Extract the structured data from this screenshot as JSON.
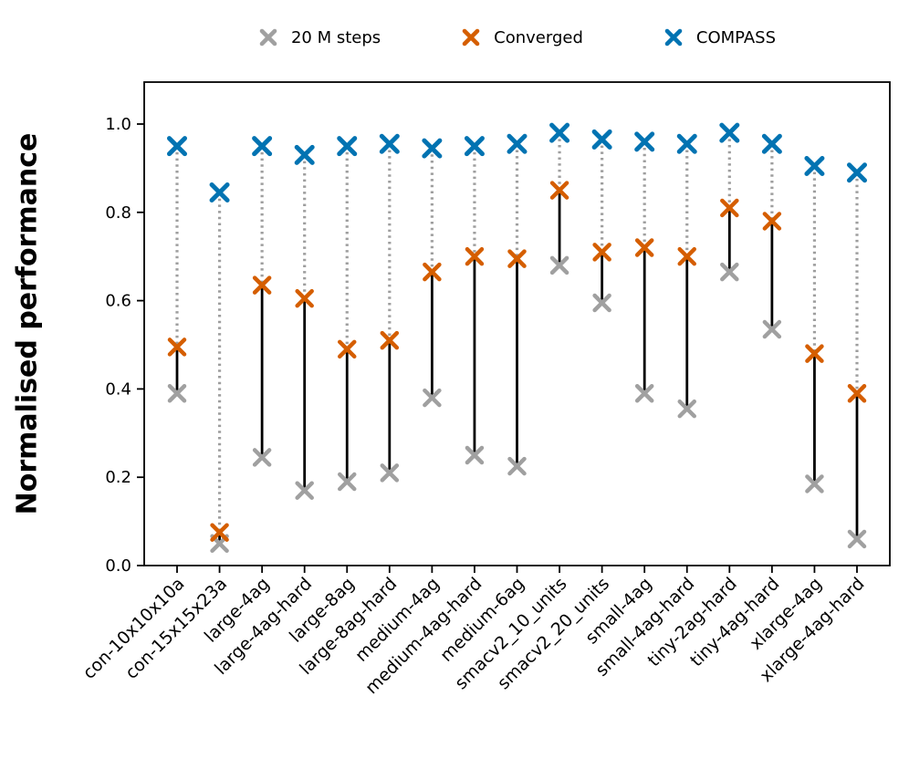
{
  "ylabel": "Normalised performance",
  "legend": {
    "items": [
      {
        "label": "20 M steps",
        "color": "#a0a0a0"
      },
      {
        "label": "Converged",
        "color": "#d55e00"
      },
      {
        "label": "COMPASS",
        "color": "#0173b2"
      }
    ]
  },
  "colors": {
    "gray_series": "#a0a0a0",
    "orange_series": "#d55e00",
    "blue_series": "#0173b2",
    "solid_connector": "#000000",
    "dotted_connector": "#9e9e9e",
    "axis": "#000000"
  },
  "chart_data": {
    "type": "scatter",
    "title": "",
    "xlabel": "",
    "ylabel": "Normalised performance",
    "marker": "x",
    "ylim": [
      0,
      1.095
    ],
    "grid": false,
    "legend_position": "top-center",
    "ytick_labels": [
      "0.0",
      "0.2",
      "0.4",
      "0.6",
      "0.8",
      "1.0"
    ],
    "yticks": [
      0.0,
      0.2,
      0.4,
      0.6,
      0.8,
      1.0
    ],
    "categories": [
      "con-10x10x10a",
      "con-15x15x23a",
      "large-4ag",
      "large-4ag-hard",
      "large-8ag",
      "large-8ag-hard",
      "medium-4ag",
      "medium-4ag-hard",
      "medium-6ag",
      "smacv2_10_units",
      "smacv2_20_units",
      "small-4ag",
      "small-4ag-hard",
      "tiny-2ag-hard",
      "tiny-4ag-hard",
      "xlarge-4ag",
      "xlarge-4ag-hard"
    ],
    "series": [
      {
        "name": "20 M steps",
        "color": "#a0a0a0",
        "values": [
          0.39,
          0.05,
          0.245,
          0.17,
          0.19,
          0.21,
          0.38,
          0.25,
          0.225,
          0.68,
          0.595,
          0.39,
          0.355,
          0.665,
          0.535,
          0.185,
          0.06
        ]
      },
      {
        "name": "Converged",
        "color": "#d55e00",
        "values": [
          0.495,
          0.075,
          0.635,
          0.605,
          0.49,
          0.51,
          0.665,
          0.7,
          0.695,
          0.85,
          0.71,
          0.72,
          0.7,
          0.81,
          0.78,
          0.48,
          0.39
        ]
      },
      {
        "name": "COMPASS",
        "color": "#0173b2",
        "values": [
          0.95,
          0.845,
          0.95,
          0.93,
          0.95,
          0.955,
          0.945,
          0.95,
          0.955,
          0.98,
          0.965,
          0.96,
          0.955,
          0.98,
          0.955,
          0.905,
          0.89
        ]
      }
    ],
    "connectors": {
      "solid_between": [
        "20 M steps",
        "Converged"
      ],
      "dotted_between": [
        "Converged",
        "COMPASS"
      ]
    }
  }
}
